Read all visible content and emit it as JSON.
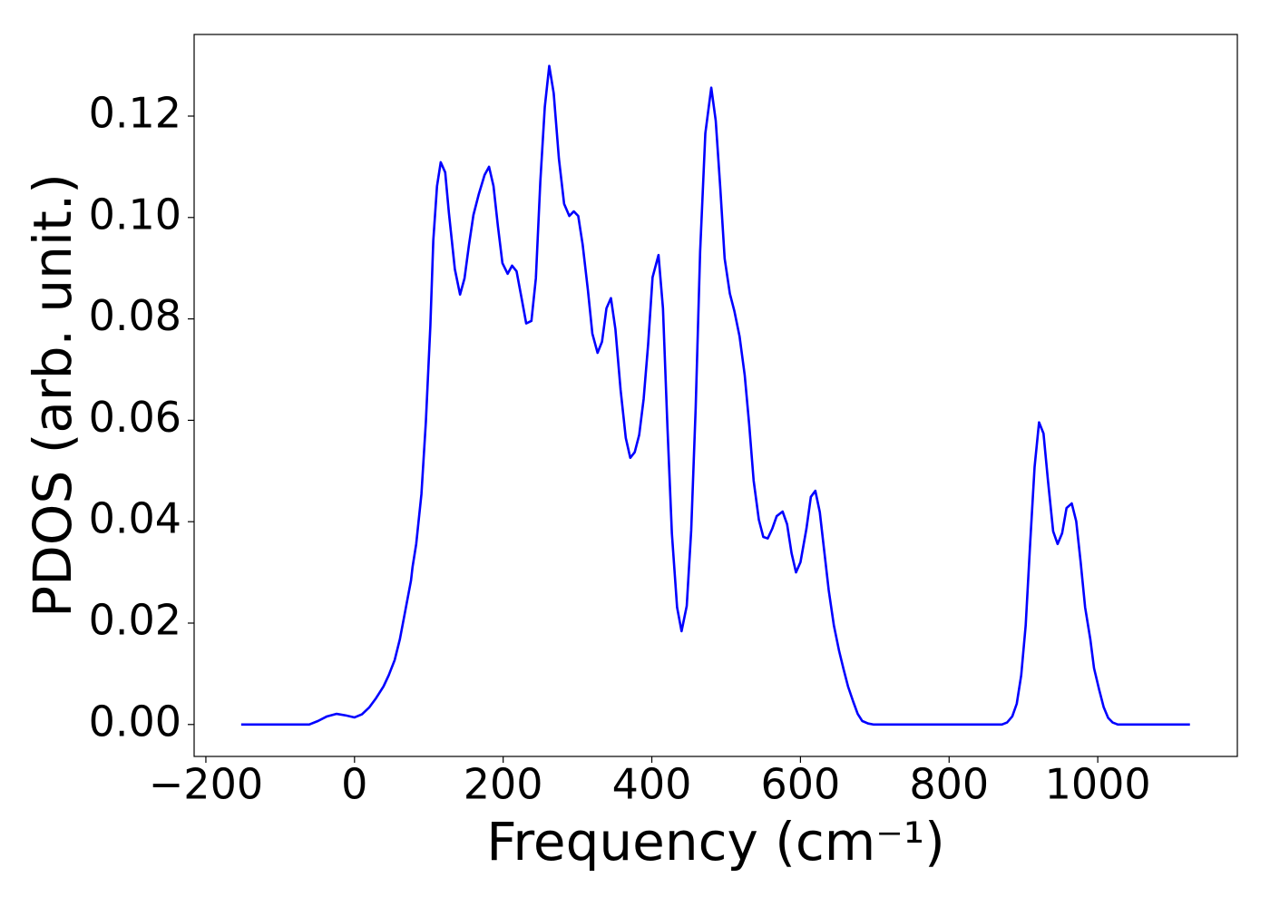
{
  "chart_data": {
    "type": "line",
    "xlabel": "Frequency (cm⁻¹)",
    "ylabel": "PDOS (arb. unit.)",
    "x": [
      -152.5,
      -61,
      -49,
      -37,
      -24,
      -12,
      0,
      10,
      20,
      29,
      39,
      46,
      54,
      61,
      68,
      76,
      78,
      83,
      90,
      96,
      102,
      106,
      111,
      116,
      122,
      127,
      135,
      142,
      148,
      154,
      160,
      167,
      175,
      181,
      187,
      193,
      199,
      206,
      212,
      218,
      225,
      231,
      238,
      244,
      250,
      256,
      262,
      268,
      275,
      282,
      289,
      295,
      301,
      307,
      314,
      320,
      327,
      333,
      339,
      345,
      351,
      358,
      365,
      371,
      377,
      383,
      389,
      395,
      401,
      409,
      415,
      421,
      427,
      434,
      440,
      447,
      453,
      459,
      465,
      472,
      480,
      486,
      492,
      498,
      505,
      511,
      518,
      525,
      531,
      537,
      544,
      550,
      556,
      562,
      568,
      576,
      582,
      588,
      594,
      600,
      608,
      614,
      620,
      626,
      632,
      638,
      645,
      652,
      658,
      664,
      671,
      677,
      683,
      691,
      698,
      871,
      878,
      885,
      891,
      897,
      903,
      909,
      915,
      921,
      927,
      933,
      940,
      946,
      952,
      958,
      965,
      971,
      977,
      983,
      990,
      995,
      1002,
      1008,
      1014,
      1020,
      1027,
      1124
    ],
    "series": [
      {
        "name": "PDOS",
        "color": "#0000ff",
        "values": [
          0,
          0,
          0.0007,
          0.0016,
          0.0021,
          0.0018,
          0.0014,
          0.002,
          0.0034,
          0.0052,
          0.0075,
          0.0097,
          0.0127,
          0.0168,
          0.0222,
          0.0284,
          0.031,
          0.0356,
          0.0454,
          0.0597,
          0.0785,
          0.0955,
          0.1062,
          0.1109,
          0.1089,
          0.1009,
          0.0898,
          0.0848,
          0.088,
          0.0946,
          0.1005,
          0.1045,
          0.1084,
          0.11,
          0.1062,
          0.0982,
          0.091,
          0.0889,
          0.0905,
          0.0894,
          0.0839,
          0.0791,
          0.0796,
          0.088,
          0.1071,
          0.1218,
          0.1299,
          0.1245,
          0.1116,
          0.1027,
          0.1003,
          0.1012,
          0.1003,
          0.0946,
          0.0857,
          0.0771,
          0.0733,
          0.0755,
          0.0821,
          0.0841,
          0.078,
          0.066,
          0.0565,
          0.0526,
          0.0537,
          0.0571,
          0.0642,
          0.0749,
          0.0882,
          0.0926,
          0.0821,
          0.0588,
          0.0377,
          0.0231,
          0.0184,
          0.0234,
          0.0383,
          0.0624,
          0.0932,
          0.1166,
          0.1256,
          0.1191,
          0.1061,
          0.0919,
          0.085,
          0.0816,
          0.0766,
          0.0689,
          0.0592,
          0.0481,
          0.0404,
          0.037,
          0.0367,
          0.0386,
          0.0411,
          0.042,
          0.0395,
          0.0338,
          0.03,
          0.032,
          0.0386,
          0.0449,
          0.0461,
          0.0419,
          0.0342,
          0.0265,
          0.0195,
          0.0145,
          0.0109,
          0.0075,
          0.0045,
          0.0021,
          0.0007,
          0.0002,
          0,
          0,
          0.0004,
          0.0016,
          0.0041,
          0.0097,
          0.0195,
          0.0356,
          0.0508,
          0.0596,
          0.0574,
          0.0481,
          0.0381,
          0.0356,
          0.0377,
          0.0427,
          0.0436,
          0.0401,
          0.032,
          0.0231,
          0.0168,
          0.0111,
          0.0068,
          0.0034,
          0.0013,
          0.0004,
          0,
          0
        ]
      }
    ],
    "xlim": [
      -215.8,
      1187.8
    ],
    "ylim": [
      -0.0063,
      0.1361
    ],
    "xticks": [
      {
        "value": -200,
        "label": "−200"
      },
      0,
      200,
      400,
      600,
      800,
      1000
    ],
    "yticks": [
      {
        "value": 0,
        "label": "0.00"
      },
      {
        "value": 0.02,
        "label": "0.02"
      },
      {
        "value": 0.04,
        "label": "0.04"
      },
      {
        "value": 0.06,
        "label": "0.06"
      },
      {
        "value": 0.08,
        "label": "0.08"
      },
      {
        "value": 0.1,
        "label": "0.10"
      },
      {
        "value": 0.12,
        "label": "0.12"
      }
    ],
    "grid": false
  }
}
